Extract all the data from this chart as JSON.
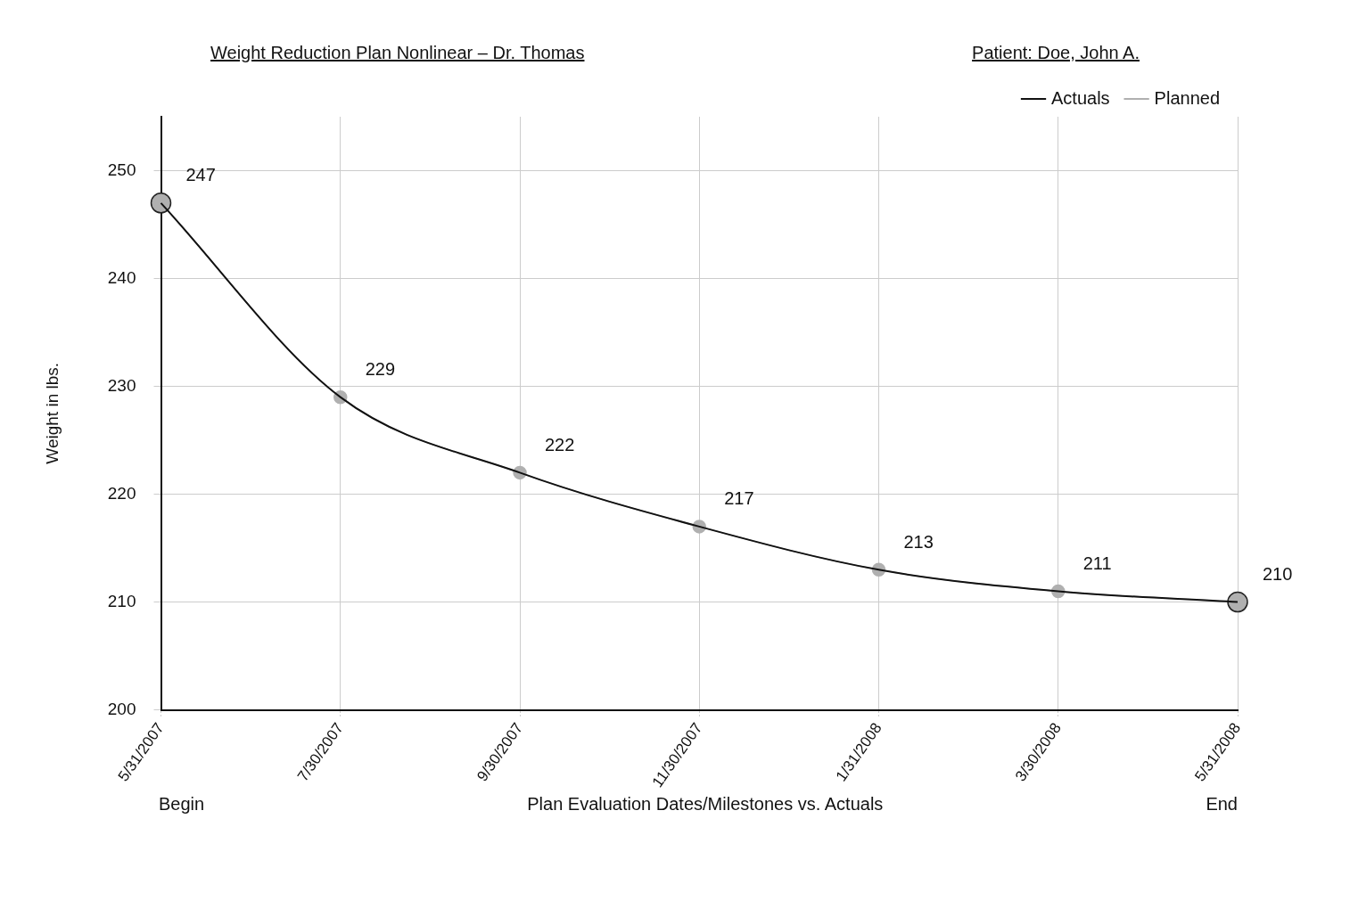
{
  "chart_data": {
    "type": "line",
    "title": "Weight Reduction Plan Nonlinear – Dr. Thomas",
    "xlabel": "Plan Evaluation Dates/Milestones vs. Actuals",
    "ylabel": "Weight in lbs.",
    "annotations": [
      "Patient: Doe, John A.",
      "Begin",
      "End"
    ],
    "categories": [
      "5/31/2007",
      "7/30/2007",
      "9/30/2007",
      "11/30/2007",
      "1/31/2008",
      "3/30/2008",
      "5/31/2008"
    ],
    "series": [
      {
        "name": "Actuals",
        "color": "#111111",
        "values": [
          247,
          229,
          222,
          217,
          213,
          211,
          210
        ],
        "marker": "none"
      },
      {
        "name": "Planned",
        "color": "#b0b0b0",
        "values": [
          247,
          229,
          222,
          217,
          213,
          211,
          210
        ],
        "marker": "circle",
        "value_labels": [
          "247",
          "229",
          "222",
          "217",
          "213",
          "211",
          "210"
        ]
      }
    ],
    "ylim": [
      200,
      255
    ],
    "yticks": [
      200,
      210,
      220,
      230,
      240,
      250
    ],
    "grid": true,
    "legend": "top right"
  }
}
